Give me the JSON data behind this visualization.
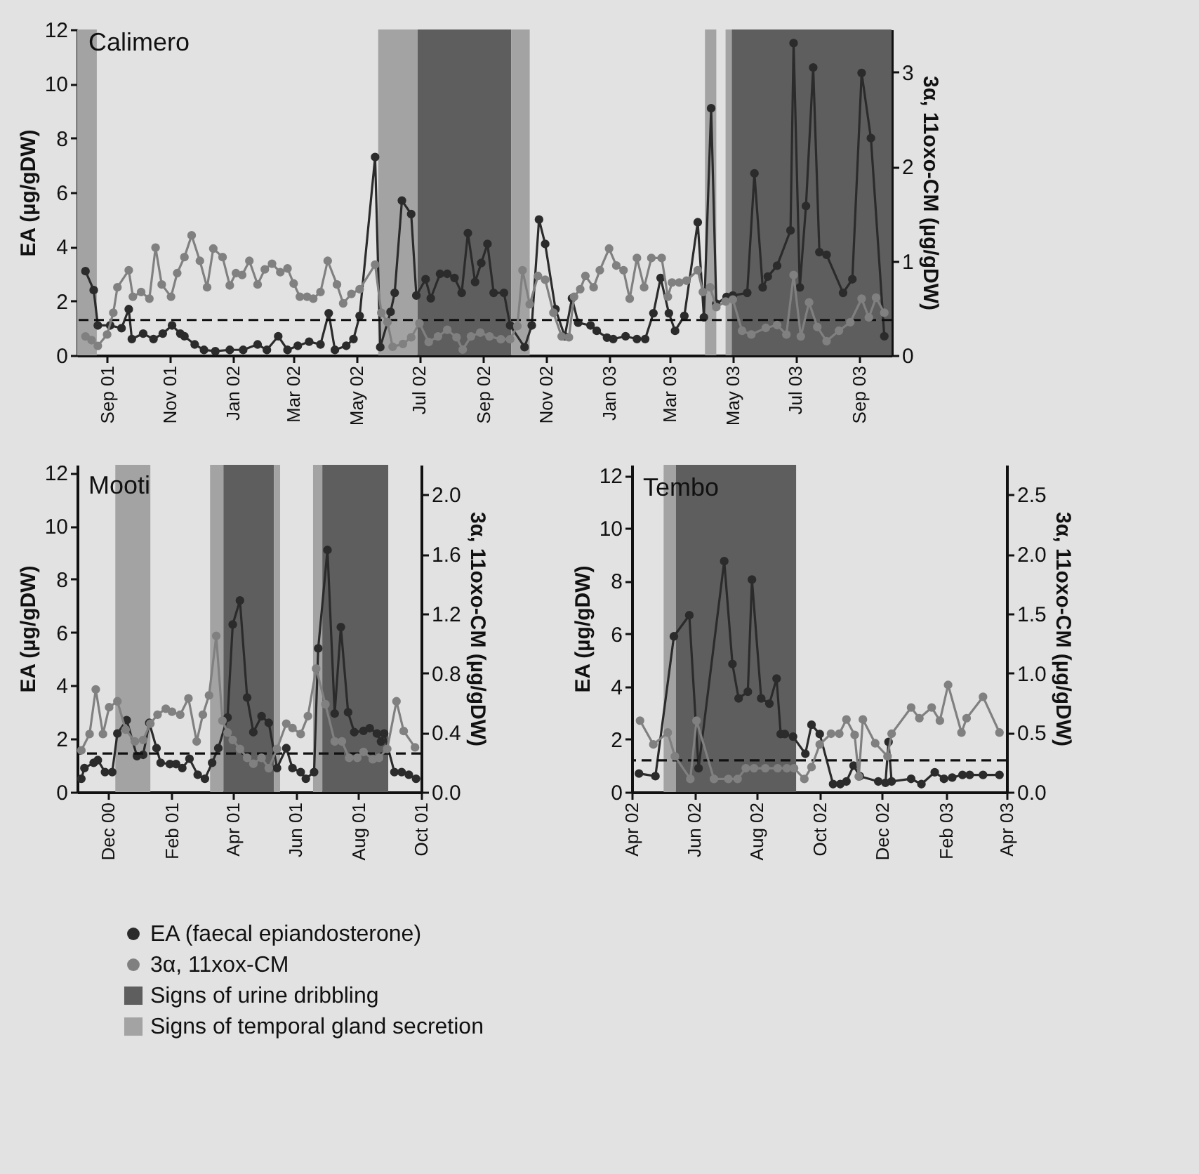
{
  "chart_data": [
    {
      "type": "line",
      "title": "Calimero",
      "ylabel": "EA (µg/gDW)",
      "y2label": "3α, 11oxo-CM (µg/gDW)",
      "marker": "circle",
      "legend": "bottom",
      "xlim": [
        "2001-08-03",
        "2003-10-02"
      ],
      "xticks": [
        {
          "value": "2001-09-01",
          "label": "Sep 01"
        },
        {
          "value": "2001-11-01",
          "label": "Nov 01"
        },
        {
          "value": "2002-01-01",
          "label": "Jan 02"
        },
        {
          "value": "2002-03-01",
          "label": "Mar 02"
        },
        {
          "value": "2002-05-01",
          "label": "May 02"
        },
        {
          "value": "2002-07-01",
          "label": "Jul 02"
        },
        {
          "value": "2002-09-01",
          "label": "Sep 02"
        },
        {
          "value": "2002-11-01",
          "label": "Nov 02"
        },
        {
          "value": "2003-01-01",
          "label": "Jan 03"
        },
        {
          "value": "2003-03-01",
          "label": "Mar 03"
        },
        {
          "value": "2003-05-01",
          "label": "May 03"
        },
        {
          "value": "2003-07-01",
          "label": "Jul 03"
        },
        {
          "value": "2003-09-01",
          "label": "Sep 03"
        }
      ],
      "ylim": [
        0,
        12
      ],
      "yticks": [
        0,
        2,
        4,
        6,
        8,
        10,
        12
      ],
      "y2lim": [
        0,
        3.45
      ],
      "y2ticks": [
        0,
        1,
        2,
        3
      ],
      "series": [
        {
          "name": "EA (faecal epiandosterone)",
          "color": "#2b2b2b",
          "x": [
            "2001-08-11",
            "2001-08-19",
            "2001-08-23",
            "2001-09-04",
            "2001-09-15",
            "2001-09-22",
            "2001-09-25",
            "2001-10-06",
            "2001-10-16",
            "2001-10-25",
            "2001-11-03",
            "2001-11-11",
            "2001-11-15",
            "2001-11-25",
            "2001-12-04",
            "2001-12-15",
            "2001-12-29",
            "2002-01-11",
            "2002-01-25",
            "2002-02-03",
            "2002-02-14",
            "2002-02-23",
            "2002-03-05",
            "2002-03-16",
            "2002-03-27",
            "2002-04-04",
            "2002-04-10",
            "2002-04-21",
            "2002-04-28",
            "2002-05-04",
            "2002-05-19",
            "2002-05-24",
            "2002-06-03",
            "2002-06-07",
            "2002-06-14",
            "2002-06-23",
            "2002-06-28",
            "2002-07-07",
            "2002-07-12",
            "2002-07-21",
            "2002-07-28",
            "2002-08-04",
            "2002-08-11",
            "2002-08-17",
            "2002-08-24",
            "2002-08-30",
            "2002-09-05",
            "2002-09-11",
            "2002-09-21",
            "2002-09-27",
            "2002-10-11",
            "2002-10-18",
            "2002-10-25",
            "2002-10-31",
            "2002-11-10",
            "2002-11-19",
            "2002-11-26",
            "2002-12-02",
            "2002-12-14",
            "2002-12-20",
            "2002-12-30",
            "2003-01-05",
            "2003-01-17",
            "2003-01-28",
            "2003-02-05",
            "2003-02-13",
            "2003-02-20",
            "2003-02-28",
            "2003-03-06",
            "2003-03-15",
            "2003-03-28",
            "2003-04-03",
            "2003-04-10",
            "2003-04-15",
            "2003-04-25",
            "2003-05-01",
            "2003-05-15",
            "2003-05-22",
            "2003-05-30",
            "2003-06-04",
            "2003-06-13",
            "2003-06-26",
            "2003-06-29",
            "2003-07-05",
            "2003-07-11",
            "2003-07-18",
            "2003-07-24",
            "2003-07-31",
            "2003-08-16",
            "2003-08-25",
            "2003-09-03",
            "2003-09-12",
            "2003-09-25"
          ],
          "values": [
            3.1,
            2.4,
            1.1,
            1.1,
            1.0,
            1.7,
            0.6,
            0.8,
            0.6,
            0.8,
            1.1,
            0.8,
            0.7,
            0.4,
            0.2,
            0.15,
            0.2,
            0.2,
            0.4,
            0.2,
            0.7,
            0.2,
            0.35,
            0.5,
            0.4,
            1.55,
            0.2,
            0.35,
            0.6,
            1.45,
            7.3,
            0.3,
            1.6,
            2.3,
            5.7,
            5.2,
            2.2,
            2.8,
            2.1,
            3.0,
            3.0,
            2.85,
            2.3,
            4.5,
            2.7,
            3.4,
            4.1,
            2.3,
            2.3,
            1.1,
            0.3,
            1.1,
            5.0,
            4.1,
            1.7,
            0.7,
            2.1,
            1.2,
            1.1,
            0.9,
            0.65,
            0.6,
            0.7,
            0.6,
            0.6,
            1.55,
            2.85,
            1.55,
            0.9,
            1.45,
            4.9,
            1.4,
            9.1,
            1.9,
            2.15,
            2.2,
            2.3,
            6.7,
            2.5,
            2.9,
            3.3,
            4.6,
            11.5,
            2.5,
            5.5,
            10.6,
            3.8,
            3.7,
            2.3,
            2.8,
            10.4,
            8.0,
            0.7
          ]
        },
        {
          "name": "3α, 11xox-CM",
          "color": "#808080",
          "axis": "y2",
          "x": [
            "2001-08-11",
            "2001-08-17",
            "2001-08-23",
            "2001-09-01",
            "2001-09-07",
            "2001-09-11",
            "2001-09-22",
            "2001-09-26",
            "2001-10-04",
            "2001-10-12",
            "2001-10-18",
            "2001-10-24",
            "2001-11-02",
            "2001-11-08",
            "2001-11-15",
            "2001-11-22",
            "2001-11-30",
            "2001-12-07",
            "2001-12-13",
            "2001-12-22",
            "2001-12-29",
            "2002-01-04",
            "2002-01-10",
            "2002-01-17",
            "2002-01-25",
            "2002-02-01",
            "2002-02-08",
            "2002-02-16",
            "2002-02-23",
            "2002-03-01",
            "2002-03-07",
            "2002-03-14",
            "2002-03-20",
            "2002-03-27",
            "2002-04-03",
            "2002-04-12",
            "2002-04-18",
            "2002-04-26",
            "2002-05-04",
            "2002-05-19",
            "2002-05-25",
            "2002-05-31",
            "2002-06-05",
            "2002-06-15",
            "2002-06-23",
            "2002-07-01",
            "2002-07-10",
            "2002-07-19",
            "2002-07-28",
            "2002-08-06",
            "2002-08-12",
            "2002-08-20",
            "2002-08-29",
            "2002-09-07",
            "2002-09-18",
            "2002-09-27",
            "2002-10-04",
            "2002-10-09",
            "2002-10-16",
            "2002-10-24",
            "2002-10-31",
            "2002-11-08",
            "2002-11-16",
            "2002-11-23",
            "2002-11-28",
            "2002-12-04",
            "2002-12-09",
            "2002-12-17",
            "2002-12-23",
            "2003-01-01",
            "2003-01-08",
            "2003-01-15",
            "2003-01-21",
            "2003-01-28",
            "2003-02-04",
            "2003-02-11",
            "2003-02-21",
            "2003-02-27",
            "2003-03-03",
            "2003-03-10",
            "2003-03-17",
            "2003-03-28",
            "2003-04-02",
            "2003-04-09",
            "2003-04-15",
            "2003-04-24",
            "2003-05-01",
            "2003-05-10",
            "2003-05-19",
            "2003-06-02",
            "2003-06-13",
            "2003-06-22",
            "2003-06-29",
            "2003-07-06",
            "2003-07-14",
            "2003-07-22",
            "2003-07-31",
            "2003-08-12",
            "2003-08-23",
            "2003-09-03",
            "2003-09-10",
            "2003-09-17",
            "2003-09-25"
          ],
          "values": [
            0.2,
            0.16,
            0.1,
            0.22,
            0.45,
            0.72,
            0.9,
            0.62,
            0.67,
            0.6,
            1.14,
            0.75,
            0.62,
            0.87,
            1.04,
            1.27,
            1.0,
            0.72,
            1.13,
            1.04,
            0.74,
            0.87,
            0.85,
            1.0,
            0.75,
            0.91,
            0.97,
            0.88,
            0.92,
            0.76,
            0.62,
            0.62,
            0.6,
            0.67,
            1.0,
            0.75,
            0.55,
            0.65,
            0.7,
            0.96,
            0.45,
            0.35,
            0.09,
            0.12,
            0.19,
            0.34,
            0.14,
            0.2,
            0.27,
            0.19,
            0.06,
            0.2,
            0.24,
            0.2,
            0.17,
            0.17,
            0.31,
            0.9,
            0.54,
            0.84,
            0.8,
            0.45,
            0.2,
            0.19,
            0.62,
            0.7,
            0.84,
            0.72,
            0.9,
            1.13,
            0.95,
            0.9,
            0.6,
            1.03,
            0.72,
            1.03,
            1.03,
            0.62,
            0.77,
            0.77,
            0.79,
            0.9,
            0.67,
            0.72,
            0.51,
            0.57,
            0.59,
            0.26,
            0.22,
            0.29,
            0.32,
            0.22,
            0.85,
            0.2,
            0.56,
            0.3,
            0.15,
            0.26,
            0.35,
            0.6,
            0.4,
            0.61,
            0.45
          ]
        }
      ],
      "ref_lines": [
        {
          "axis": "y",
          "value": 1.3,
          "line_style": "dashed",
          "color": "#111111"
        }
      ],
      "bands": [
        {
          "axis": "x",
          "from": "2002-06-29",
          "to": "2002-09-28",
          "label": "Signs of urine dribbling",
          "color": "#5e5e5e"
        },
        {
          "axis": "x",
          "from": "2001-08-03",
          "to": "2001-08-22",
          "label": "Signs of temporal gland secretion",
          "color": "#a3a3a3"
        },
        {
          "axis": "x",
          "from": "2002-05-22",
          "to": "2002-06-29",
          "color": "#a3a3a3"
        },
        {
          "axis": "x",
          "from": "2002-09-28",
          "to": "2002-10-16",
          "color": "#a3a3a3"
        },
        {
          "axis": "x",
          "from": "2003-04-04",
          "to": "2003-04-15",
          "color": "#a3a3a3"
        },
        {
          "axis": "x",
          "from": "2003-04-24",
          "to": "2003-04-30",
          "color": "#a3a3a3"
        },
        {
          "axis": "x",
          "from": "2003-04-30",
          "to": "2003-10-02",
          "color": "#5e5e5e"
        }
      ]
    },
    {
      "type": "line",
      "title": "Mooti",
      "ylabel": "EA (µg/gDW)",
      "y2label": "3α, 11oxo-CM (µg/gDW)",
      "marker": "circle",
      "xlim": [
        "2000-11-01",
        "2001-10-01"
      ],
      "xticks": [
        {
          "value": "2000-12-01",
          "label": "Dec 00"
        },
        {
          "value": "2001-02-01",
          "label": "Feb 01"
        },
        {
          "value": "2001-04-01",
          "label": "Apr 01"
        },
        {
          "value": "2001-06-01",
          "label": "Jun 01"
        },
        {
          "value": "2001-08-01",
          "label": "Aug 01"
        },
        {
          "value": "2001-10-01",
          "label": "Oct 01"
        }
      ],
      "ylim": [
        0,
        12.3
      ],
      "yticks": [
        0,
        2,
        4,
        6,
        8,
        10,
        12
      ],
      "y2lim": [
        0,
        2.2
      ],
      "y2ticks": [
        {
          "value": 0,
          "label": "0.0"
        },
        0.4,
        0.8,
        1.2,
        1.6,
        {
          "value": 2,
          "label": "2.0"
        }
      ],
      "series": [
        {
          "color": "#2b2b2b",
          "x": [
            "2000-11-05",
            "2000-11-08",
            "2000-11-17",
            "2000-11-21",
            "2000-11-28",
            "2000-12-05",
            "2000-12-10",
            "2000-12-19",
            "2000-12-29",
            "2001-01-04",
            "2001-01-10",
            "2001-01-17",
            "2001-01-21",
            "2001-01-30",
            "2001-02-05",
            "2001-02-11",
            "2001-02-18",
            "2001-02-26",
            "2001-03-05",
            "2001-03-12",
            "2001-03-18",
            "2001-03-27",
            "2001-04-01",
            "2001-04-08",
            "2001-04-15",
            "2001-04-21",
            "2001-04-29",
            "2001-05-06",
            "2001-05-14",
            "2001-05-23",
            "2001-05-29",
            "2001-06-06",
            "2001-06-11",
            "2001-06-19",
            "2001-06-23",
            "2001-07-02",
            "2001-07-09",
            "2001-07-15",
            "2001-07-22",
            "2001-07-28",
            "2001-08-06",
            "2001-08-12",
            "2001-08-19",
            "2001-08-23",
            "2001-08-26",
            "2001-09-05",
            "2001-09-12",
            "2001-09-19",
            "2001-09-26"
          ],
          "values": [
            0.5,
            0.9,
            1.1,
            1.2,
            0.75,
            0.75,
            2.2,
            2.7,
            1.35,
            1.4,
            2.6,
            1.65,
            1.1,
            1.05,
            1.05,
            0.9,
            1.25,
            0.65,
            0.5,
            1.1,
            1.65,
            2.8,
            6.3,
            7.2,
            3.55,
            2.25,
            2.85,
            2.6,
            0.9,
            1.65,
            0.9,
            0.75,
            0.5,
            0.75,
            5.4,
            9.1,
            2.95,
            6.2,
            3.0,
            2.25,
            2.3,
            2.4,
            2.2,
            1.9,
            2.2,
            0.75,
            0.75,
            0.65,
            0.5
          ]
        },
        {
          "color": "#808080",
          "axis": "y2",
          "x": [
            "2000-11-05",
            "2000-11-13",
            "2000-11-19",
            "2000-11-26",
            "2000-12-02",
            "2000-12-10",
            "2000-12-18",
            "2000-12-27",
            "2001-01-04",
            "2001-01-11",
            "2001-01-18",
            "2001-01-26",
            "2001-02-01",
            "2001-02-09",
            "2001-02-17",
            "2001-02-25",
            "2001-03-03",
            "2001-03-09",
            "2001-03-16",
            "2001-03-22",
            "2001-03-27",
            "2001-04-01",
            "2001-04-08",
            "2001-04-15",
            "2001-04-21",
            "2001-04-29",
            "2001-05-06",
            "2001-05-14",
            "2001-05-23",
            "2001-05-29",
            "2001-06-06",
            "2001-06-13",
            "2001-06-21",
            "2001-06-30",
            "2001-07-09",
            "2001-07-16",
            "2001-07-23",
            "2001-07-31",
            "2001-08-06",
            "2001-08-15",
            "2001-08-21",
            "2001-08-29",
            "2001-09-07",
            "2001-09-14",
            "2001-09-25"
          ],
          "values": [
            0.28,
            0.39,
            0.69,
            0.39,
            0.57,
            0.61,
            0.42,
            0.34,
            0.35,
            0.46,
            0.52,
            0.56,
            0.54,
            0.52,
            0.63,
            0.34,
            0.52,
            0.65,
            1.05,
            0.48,
            0.4,
            0.35,
            0.29,
            0.23,
            0.19,
            0.23,
            0.16,
            0.29,
            0.46,
            0.43,
            0.39,
            0.51,
            0.83,
            0.59,
            0.34,
            0.34,
            0.23,
            0.23,
            0.27,
            0.22,
            0.23,
            0.29,
            0.61,
            0.41,
            0.3
          ]
        }
      ],
      "ref_lines": [
        {
          "axis": "y",
          "value": 1.45,
          "line_style": "dashed",
          "color": "#111111"
        }
      ],
      "bands": [
        {
          "axis": "x",
          "from": "2000-12-08",
          "to": "2001-01-11",
          "color": "#a3a3a3"
        },
        {
          "axis": "x",
          "from": "2001-03-10",
          "to": "2001-03-23",
          "color": "#a3a3a3"
        },
        {
          "axis": "x",
          "from": "2001-03-23",
          "to": "2001-05-11",
          "color": "#5e5e5e"
        },
        {
          "axis": "x",
          "from": "2001-05-11",
          "to": "2001-05-17",
          "color": "#a3a3a3"
        },
        {
          "axis": "x",
          "from": "2001-06-18",
          "to": "2001-06-27",
          "color": "#a3a3a3"
        },
        {
          "axis": "x",
          "from": "2001-06-27",
          "to": "2001-08-30",
          "color": "#5e5e5e"
        }
      ]
    },
    {
      "type": "line",
      "title": "Tembo",
      "ylabel": "EA (µg/gDW)",
      "y2label": "3α, 11oxo-CM (µg/gDW)",
      "marker": "circle",
      "xlim": [
        "2002-04-01",
        "2003-04-01"
      ],
      "xticks": [
        {
          "value": "2002-04-01",
          "label": "Apr 02"
        },
        {
          "value": "2002-06-01",
          "label": "Jun 02"
        },
        {
          "value": "2002-08-01",
          "label": "Aug 02"
        },
        {
          "value": "2002-10-01",
          "label": "Oct 02"
        },
        {
          "value": "2002-12-01",
          "label": "Dec 02"
        },
        {
          "value": "2003-02-01",
          "label": "Feb 03"
        },
        {
          "value": "2003-04-01",
          "label": "Apr 03"
        }
      ],
      "ylim": [
        0,
        12.4
      ],
      "yticks": [
        0,
        2,
        4,
        6,
        8,
        10,
        12
      ],
      "y2lim": [
        0,
        2.75
      ],
      "y2ticks": [
        {
          "value": 0,
          "label": "0.0"
        },
        0.5,
        {
          "value": 1,
          "label": "1.0"
        },
        1.5,
        {
          "value": 2,
          "label": "2.0"
        },
        2.5
      ],
      "series": [
        {
          "color": "#2b2b2b",
          "x": [
            "2002-04-08",
            "2002-04-24",
            "2002-05-12",
            "2002-05-27",
            "2002-06-05",
            "2002-06-30",
            "2002-07-08",
            "2002-07-14",
            "2002-07-23",
            "2002-07-27",
            "2002-08-05",
            "2002-08-13",
            "2002-08-20",
            "2002-08-24",
            "2002-08-28",
            "2002-09-05",
            "2002-09-17",
            "2002-09-23",
            "2002-10-01",
            "2002-10-14",
            "2002-10-21",
            "2002-10-27",
            "2002-11-03",
            "2002-11-09",
            "2002-11-27",
            "2002-12-04",
            "2002-12-07",
            "2002-12-10",
            "2002-12-29",
            "2003-01-08",
            "2003-01-21",
            "2003-01-30",
            "2003-02-07",
            "2003-02-17",
            "2003-02-24",
            "2003-03-09",
            "2003-03-25"
          ],
          "values": [
            0.7,
            0.6,
            5.9,
            6.7,
            0.9,
            8.75,
            4.85,
            3.55,
            3.8,
            8.05,
            3.55,
            3.35,
            4.3,
            2.2,
            2.2,
            2.1,
            1.45,
            2.55,
            2.2,
            0.3,
            0.3,
            0.4,
            1.0,
            0.6,
            0.4,
            0.35,
            1.9,
            0.4,
            0.5,
            0.3,
            0.75,
            0.5,
            0.55,
            0.65,
            0.65,
            0.65,
            0.65
          ]
        },
        {
          "color": "#808080",
          "axis": "y2",
          "x": [
            "2002-04-09",
            "2002-04-22",
            "2002-05-06",
            "2002-05-13",
            "2002-05-28",
            "2002-06-03",
            "2002-06-20",
            "2002-07-04",
            "2002-07-13",
            "2002-07-21",
            "2002-07-29",
            "2002-08-09",
            "2002-08-21",
            "2002-08-30",
            "2002-09-06",
            "2002-09-16",
            "2002-09-23",
            "2002-10-01",
            "2002-10-12",
            "2002-10-20",
            "2002-10-27",
            "2002-11-04",
            "2002-11-08",
            "2002-11-12",
            "2002-11-24",
            "2002-12-06",
            "2002-12-10",
            "2002-12-29",
            "2003-01-06",
            "2003-01-18",
            "2003-01-26",
            "2003-02-03",
            "2003-02-16",
            "2003-02-21",
            "2003-03-09",
            "2003-03-25"
          ],
          "values": [
            0.6,
            0.4,
            0.5,
            0.3,
            0.11,
            0.6,
            0.11,
            0.11,
            0.11,
            0.2,
            0.2,
            0.2,
            0.2,
            0.2,
            0.2,
            0.11,
            0.21,
            0.4,
            0.49,
            0.49,
            0.61,
            0.48,
            0.13,
            0.61,
            0.41,
            0.3,
            0.49,
            0.71,
            0.62,
            0.71,
            0.6,
            0.9,
            0.5,
            0.62,
            0.8,
            0.5
          ]
        }
      ],
      "ref_lines": [
        {
          "axis": "y",
          "value": 1.2,
          "line_style": "dashed",
          "color": "#111111"
        }
      ],
      "bands": [
        {
          "axis": "x",
          "from": "2002-05-02",
          "to": "2002-05-14",
          "color": "#a3a3a3"
        },
        {
          "axis": "x",
          "from": "2002-05-14",
          "to": "2002-09-08",
          "color": "#5e5e5e"
        }
      ]
    }
  ]
}
